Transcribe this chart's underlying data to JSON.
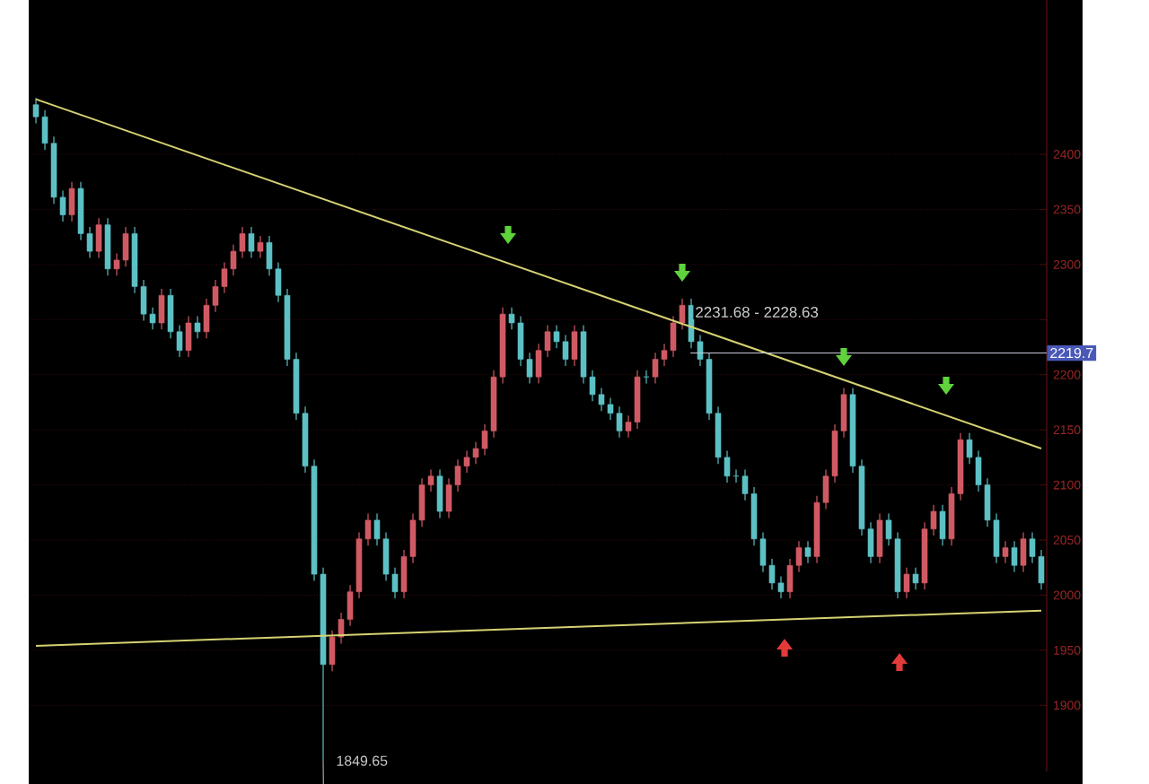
{
  "chart_data": {
    "type": "candlestick",
    "categories": [
      null,
      null,
      null,
      null,
      null,
      null,
      null,
      null,
      null,
      null,
      null,
      null,
      null,
      null,
      null,
      null,
      null,
      null,
      null,
      null,
      null,
      null,
      null,
      null,
      null,
      null,
      null,
      null,
      null,
      null,
      null,
      null,
      null,
      null,
      null,
      null,
      null,
      null,
      null,
      null,
      null,
      null,
      null,
      null,
      null,
      null,
      null,
      null,
      null,
      null,
      null,
      null,
      null,
      null,
      null,
      null,
      null,
      null,
      null,
      null,
      null,
      null,
      null,
      null,
      null,
      null,
      null,
      null,
      null,
      null,
      null,
      null,
      null,
      null,
      null,
      null,
      null,
      null,
      null,
      null,
      null,
      null,
      null,
      null,
      null,
      null,
      null,
      null,
      null,
      null,
      null,
      null,
      null,
      null,
      null,
      null,
      null,
      null,
      null,
      null,
      null,
      null,
      null,
      null,
      null,
      null,
      null,
      null,
      null,
      null,
      null,
      null,
      null
    ],
    "ohlc": [
      [
        2445,
        2451,
        2428,
        2434
      ],
      [
        2434,
        2440,
        2404,
        2410
      ],
      [
        2410,
        2416,
        2355,
        2361
      ],
      [
        2361,
        2367,
        2339,
        2345
      ],
      [
        2345,
        2375,
        2339,
        2369
      ],
      [
        2369,
        2375,
        2322,
        2328
      ],
      [
        2328,
        2334,
        2306,
        2312
      ],
      [
        2312,
        2342,
        2306,
        2336
      ],
      [
        2336,
        2342,
        2290,
        2296
      ],
      [
        2296,
        2310,
        2290,
        2304
      ],
      [
        2304,
        2334,
        2298,
        2328
      ],
      [
        2328,
        2334,
        2274,
        2280
      ],
      [
        2280,
        2286,
        2249,
        2255
      ],
      [
        2255,
        2261,
        2241,
        2247
      ],
      [
        2247,
        2278,
        2241,
        2272
      ],
      [
        2272,
        2278,
        2233,
        2239
      ],
      [
        2239,
        2245,
        2216,
        2222
      ],
      [
        2222,
        2253,
        2216,
        2247
      ],
      [
        2247,
        2253,
        2233,
        2239
      ],
      [
        2239,
        2269,
        2233,
        2263
      ],
      [
        2263,
        2286,
        2257,
        2280
      ],
      [
        2280,
        2302,
        2274,
        2296
      ],
      [
        2296,
        2318,
        2290,
        2312
      ],
      [
        2312,
        2334,
        2306,
        2328
      ],
      [
        2328,
        2334,
        2306,
        2312
      ],
      [
        2312,
        2326,
        2306,
        2320
      ],
      [
        2320,
        2326,
        2290,
        2296
      ],
      [
        2296,
        2302,
        2266,
        2272
      ],
      [
        2272,
        2278,
        2208,
        2214
      ],
      [
        2214,
        2220,
        2159,
        2165
      ],
      [
        2165,
        2171,
        2111,
        2117
      ],
      [
        2117,
        2123,
        2013,
        2019
      ],
      [
        2019,
        2025,
        1849.65,
        1937
      ],
      [
        1937,
        1968,
        1931,
        1962
      ],
      [
        1962,
        1984,
        1956,
        1978
      ],
      [
        1978,
        2009,
        1972,
        2003
      ],
      [
        2003,
        2057,
        1997,
        2051
      ],
      [
        2051,
        2074,
        2045,
        2068
      ],
      [
        2068,
        2074,
        2045,
        2051
      ],
      [
        2051,
        2057,
        2013,
        2019
      ],
      [
        2019,
        2025,
        1997,
        2003
      ],
      [
        2003,
        2041,
        1997,
        2035
      ],
      [
        2035,
        2074,
        2029,
        2068
      ],
      [
        2068,
        2106,
        2062,
        2100
      ],
      [
        2100,
        2114,
        2094,
        2108
      ],
      [
        2108,
        2114,
        2070,
        2076
      ],
      [
        2076,
        2106,
        2070,
        2100
      ],
      [
        2100,
        2123,
        2094,
        2117
      ],
      [
        2117,
        2131,
        2111,
        2125
      ],
      [
        2125,
        2139,
        2119,
        2133
      ],
      [
        2133,
        2155,
        2127,
        2149
      ],
      [
        2149,
        2204,
        2143,
        2198
      ],
      [
        2198,
        2261,
        2192,
        2255
      ],
      [
        2255,
        2261,
        2241,
        2247
      ],
      [
        2247,
        2253,
        2208,
        2214
      ],
      [
        2214,
        2220,
        2192,
        2198
      ],
      [
        2198,
        2228,
        2192,
        2222
      ],
      [
        2222,
        2245,
        2216,
        2239
      ],
      [
        2239,
        2245,
        2224,
        2230
      ],
      [
        2230,
        2236,
        2208,
        2214
      ],
      [
        2214,
        2245,
        2208,
        2239
      ],
      [
        2239,
        2245,
        2192,
        2198
      ],
      [
        2198,
        2204,
        2176,
        2182
      ],
      [
        2182,
        2188,
        2167,
        2173
      ],
      [
        2173,
        2179,
        2159,
        2165
      ],
      [
        2165,
        2171,
        2143,
        2149
      ],
      [
        2149,
        2163,
        2143,
        2157
      ],
      [
        2157,
        2204,
        2151,
        2198
      ],
      [
        2198,
        2204,
        2192,
        2198
      ],
      [
        2198,
        2220,
        2192,
        2214
      ],
      [
        2214,
        2228,
        2208,
        2222
      ],
      [
        2222,
        2253,
        2216,
        2247
      ],
      [
        2247,
        2269,
        2241,
        2263
      ],
      [
        2263,
        2269,
        2224,
        2230
      ],
      [
        2230,
        2236,
        2208,
        2214
      ],
      [
        2214,
        2220,
        2159,
        2165
      ],
      [
        2165,
        2171,
        2119,
        2125
      ],
      [
        2125,
        2131,
        2102,
        2108
      ],
      [
        2108,
        2114,
        2102,
        2108
      ],
      [
        2108,
        2114,
        2086,
        2092
      ],
      [
        2092,
        2098,
        2045,
        2051
      ],
      [
        2051,
        2057,
        2021,
        2027
      ],
      [
        2027,
        2033,
        2005,
        2011
      ],
      [
        2011,
        2017,
        1997,
        2003
      ],
      [
        2003,
        2033,
        1997,
        2027
      ],
      [
        2027,
        2049,
        2021,
        2043
      ],
      [
        2043,
        2049,
        2029,
        2035
      ],
      [
        2035,
        2090,
        2029,
        2084
      ],
      [
        2084,
        2114,
        2078,
        2108
      ],
      [
        2108,
        2155,
        2102,
        2149
      ],
      [
        2149,
        2188,
        2143,
        2182
      ],
      [
        2182,
        2188,
        2111,
        2117
      ],
      [
        2117,
        2123,
        2054,
        2060
      ],
      [
        2060,
        2066,
        2029,
        2035
      ],
      [
        2035,
        2074,
        2029,
        2068
      ],
      [
        2068,
        2074,
        2045,
        2051
      ],
      [
        2051,
        2057,
        1997,
        2003
      ],
      [
        2003,
        2025,
        1997,
        2019
      ],
      [
        2019,
        2025,
        2005,
        2011
      ],
      [
        2011,
        2066,
        2005,
        2060
      ],
      [
        2060,
        2082,
        2054,
        2076
      ],
      [
        2076,
        2082,
        2045,
        2051
      ],
      [
        2051,
        2098,
        2045,
        2092
      ],
      [
        2092,
        2147,
        2086,
        2141
      ],
      [
        2141,
        2147,
        2119,
        2125
      ],
      [
        2125,
        2131,
        2094,
        2100
      ],
      [
        2100,
        2106,
        2062,
        2068
      ],
      [
        2068,
        2074,
        2029,
        2035
      ],
      [
        2035,
        2049,
        2029,
        2043
      ],
      [
        2043,
        2049,
        2021,
        2027
      ],
      [
        2027,
        2057,
        2021,
        2051
      ],
      [
        2051,
        2057,
        2029,
        2035
      ],
      [
        2035,
        2041,
        2005,
        2011
      ]
    ],
    "colors": [
      "#5cc0c4",
      "#5cc0c4",
      "#5cc0c4",
      "#5cc0c4",
      "#d05a64",
      "#5cc0c4",
      "#5cc0c4",
      "#d05a64",
      "#5cc0c4",
      "#d05a64",
      "#d05a64",
      "#5cc0c4",
      "#5cc0c4",
      "#5cc0c4",
      "#d05a64",
      "#5cc0c4",
      "#5cc0c4",
      "#d05a64",
      "#5cc0c4",
      "#d05a64",
      "#d05a64",
      "#d05a64",
      "#d05a64",
      "#d05a64",
      "#5cc0c4",
      "#d05a64",
      "#5cc0c4",
      "#5cc0c4",
      "#5cc0c4",
      "#5cc0c4",
      "#5cc0c4",
      "#5cc0c4",
      "#5cc0c4",
      "#d05a64",
      "#d05a64",
      "#d05a64",
      "#d05a64",
      "#d05a64",
      "#5cc0c4",
      "#5cc0c4",
      "#5cc0c4",
      "#d05a64",
      "#d05a64",
      "#d05a64",
      "#d05a64",
      "#5cc0c4",
      "#d05a64",
      "#d05a64",
      "#d05a64",
      "#d05a64",
      "#d05a64",
      "#d05a64",
      "#d05a64",
      "#5cc0c4",
      "#5cc0c4",
      "#5cc0c4",
      "#d05a64",
      "#d05a64",
      "#5cc0c4",
      "#5cc0c4",
      "#d05a64",
      "#5cc0c4",
      "#5cc0c4",
      "#5cc0c4",
      "#5cc0c4",
      "#5cc0c4",
      "#d05a64",
      "#d05a64",
      "#5cc0c4",
      "#d05a64",
      "#d05a64",
      "#d05a64",
      "#d05a64",
      "#5cc0c4",
      "#5cc0c4",
      "#5cc0c4",
      "#5cc0c4",
      "#5cc0c4",
      "#5cc0c4",
      "#5cc0c4",
      "#5cc0c4",
      "#5cc0c4",
      "#5cc0c4",
      "#5cc0c4",
      "#d05a64",
      "#d05a64",
      "#5cc0c4",
      "#d05a64",
      "#d05a64",
      "#d05a64",
      "#d05a64",
      "#5cc0c4",
      "#5cc0c4",
      "#5cc0c4",
      "#d05a64",
      "#5cc0c4",
      "#5cc0c4",
      "#d05a64",
      "#5cc0c4",
      "#d05a64",
      "#d05a64",
      "#5cc0c4",
      "#d05a64",
      "#d05a64",
      "#5cc0c4",
      "#5cc0c4",
      "#5cc0c4",
      "#5cc0c4",
      "#d05a64",
      "#5cc0c4",
      "#d05a64",
      "#5cc0c4",
      "#5cc0c4"
    ],
    "series": [
      {
        "type": "line",
        "color": "#d6d272",
        "values": [
          2450,
          null,
          null,
          null,
          null,
          null,
          null,
          null,
          null,
          null,
          null,
          null,
          null,
          null,
          null,
          null,
          null,
          null,
          null,
          null,
          null,
          null,
          null,
          null,
          null,
          null,
          null,
          null,
          null,
          null,
          null,
          null,
          null,
          null,
          null,
          null,
          null,
          null,
          null,
          null,
          null,
          null,
          null,
          null,
          null,
          null,
          null,
          null,
          null,
          null,
          null,
          null,
          null,
          null,
          null,
          null,
          null,
          null,
          null,
          null,
          null,
          null,
          null,
          null,
          null,
          null,
          null,
          null,
          null,
          null,
          null,
          null,
          null,
          null,
          null,
          null,
          null,
          null,
          null,
          null,
          null,
          null,
          null,
          null,
          null,
          null,
          null,
          null,
          null,
          null,
          null,
          null,
          null,
          null,
          null,
          null,
          null,
          null,
          null,
          null,
          null,
          null,
          null,
          null,
          null,
          null,
          null,
          null,
          null,
          null,
          null,
          null,
          2133
        ]
      },
      {
        "type": "line",
        "color": "#d6d272",
        "values": [
          1954,
          null,
          null,
          null,
          null,
          null,
          null,
          null,
          null,
          null,
          null,
          null,
          null,
          null,
          null,
          null,
          null,
          null,
          null,
          null,
          null,
          null,
          null,
          null,
          null,
          null,
          null,
          null,
          null,
          null,
          null,
          null,
          null,
          null,
          null,
          null,
          null,
          null,
          null,
          null,
          null,
          null,
          null,
          null,
          null,
          null,
          null,
          null,
          null,
          null,
          null,
          null,
          null,
          null,
          null,
          null,
          null,
          null,
          null,
          null,
          null,
          null,
          null,
          null,
          null,
          null,
          null,
          null,
          null,
          null,
          null,
          null,
          null,
          null,
          null,
          null,
          null,
          null,
          null,
          null,
          null,
          null,
          null,
          null,
          null,
          null,
          null,
          null,
          null,
          null,
          null,
          null,
          null,
          null,
          null,
          null,
          null,
          null,
          null,
          null,
          null,
          null,
          null,
          null,
          null,
          null,
          null,
          null,
          null,
          null,
          null,
          null,
          1986
        ]
      }
    ],
    "ylim": [
      1840,
      2540
    ],
    "yticks": [
      1900,
      1950,
      2000,
      2050,
      2100,
      2150,
      2200,
      {
        "value": 2250,
        "label": null
      },
      2300,
      2350,
      2400
    ],
    "tick_labels": "y",
    "grid": "y",
    "ref_lines": [
      {
        "axis": "y",
        "value": 2219.7,
        "label": "2219.7",
        "color": "#c8c8d8"
      }
    ],
    "annotations": [
      "2231.68 - 2228.63",
      "1849.65"
    ]
  }
}
